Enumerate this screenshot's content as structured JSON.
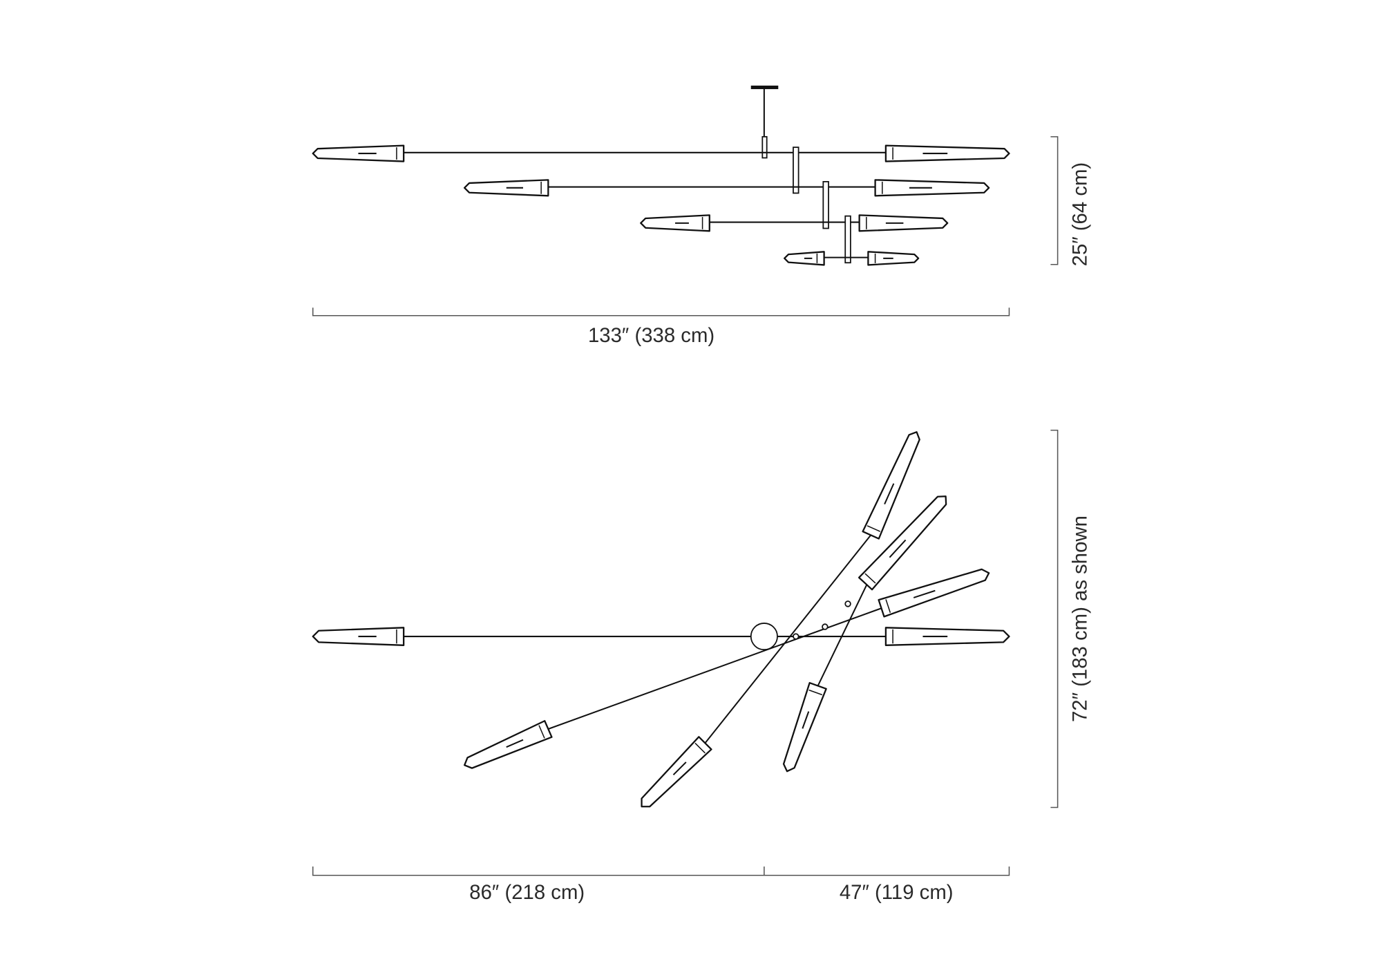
{
  "elevation_view": {
    "height_dimension": "25″ (64 cm)",
    "width_dimension": "133″ (338 cm)"
  },
  "plan_view": {
    "height_dimension": "72″ (183 cm) as shown",
    "left_dimension": "86″ (218 cm)",
    "right_dimension": "47″ (119 cm)"
  },
  "colors": {
    "line": "#111111",
    "dimension": "#555555",
    "background": "#ffffff"
  }
}
